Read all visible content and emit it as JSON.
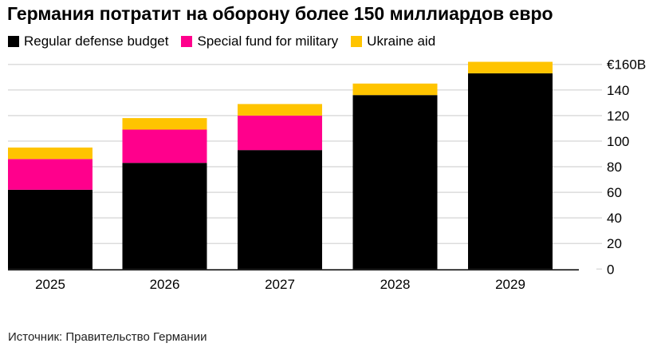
{
  "chart_data": {
    "type": "bar",
    "stacked": true,
    "title": "Германия потратит на оборону более 150 миллиардов евро",
    "categories": [
      "2025",
      "2026",
      "2027",
      "2028",
      "2029"
    ],
    "series": [
      {
        "name": "Regular defense budget",
        "color": "#000000",
        "values": [
          62,
          83,
          93,
          136,
          153
        ]
      },
      {
        "name": "Special fund for military",
        "color": "#ff008c",
        "values": [
          24,
          26,
          27,
          0,
          0
        ]
      },
      {
        "name": "Ukraine aid",
        "color": "#ffc400",
        "values": [
          9,
          9,
          9,
          9,
          9
        ]
      }
    ],
    "yticks": [
      "0",
      "20",
      "40",
      "60",
      "80",
      "100",
      "120",
      "140",
      "€160B"
    ],
    "ylim": [
      0,
      160
    ],
    "grid": true,
    "legend": "top-left",
    "xlabel": "",
    "ylabel": "",
    "source": "Источник: Правительство Германии"
  }
}
